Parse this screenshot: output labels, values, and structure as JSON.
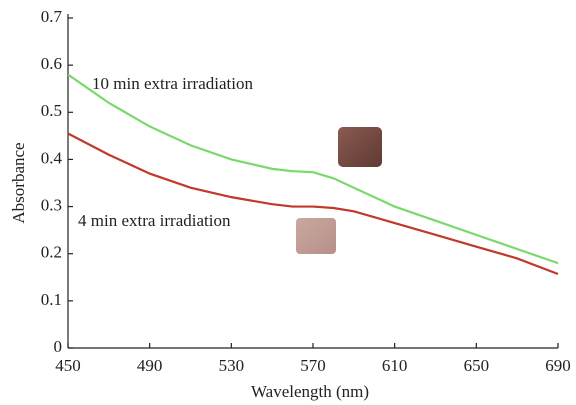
{
  "chart_data": {
    "type": "line",
    "x_label": "Wavelength (nm)",
    "y_label": "Absorbance",
    "x": [
      450,
      470,
      490,
      510,
      530,
      550,
      560,
      570,
      580,
      590,
      610,
      630,
      650,
      670,
      690
    ],
    "series": [
      {
        "name": "10 min extra irradiation",
        "color": "#7ad86c",
        "values": [
          0.58,
          0.52,
          0.47,
          0.43,
          0.4,
          0.38,
          0.375,
          0.373,
          0.36,
          0.34,
          0.3,
          0.27,
          0.24,
          0.21,
          0.18
        ]
      },
      {
        "name": "4 min extra irradiation",
        "color": "#c0392b",
        "values": [
          0.455,
          0.41,
          0.37,
          0.34,
          0.32,
          0.305,
          0.3,
          0.3,
          0.297,
          0.29,
          0.265,
          0.24,
          0.215,
          0.19,
          0.157
        ]
      }
    ],
    "xlim": [
      450,
      690
    ],
    "xticks": [
      450,
      490,
      530,
      570,
      610,
      650,
      690
    ],
    "ylim": [
      0,
      0.7
    ],
    "yticks": [
      0,
      0.1,
      0.2,
      0.3,
      0.4,
      0.5,
      0.6,
      0.7
    ]
  }
}
